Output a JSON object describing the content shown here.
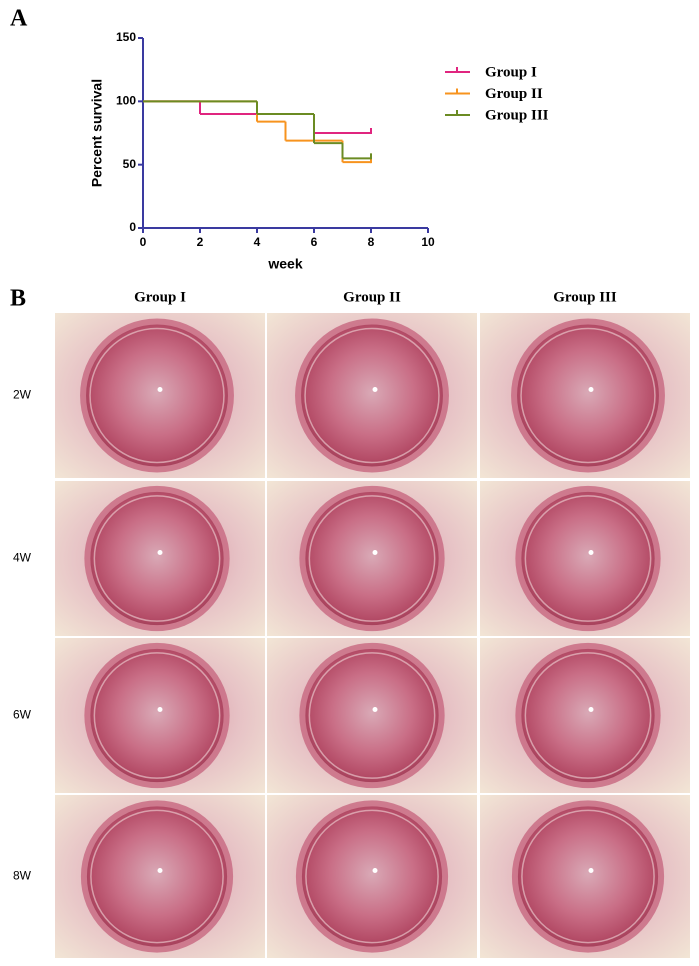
{
  "panel_labels": [
    "A",
    "B"
  ],
  "chart_data": {
    "type": "line",
    "step": "post",
    "xlabel": "week",
    "ylabel": "Percent survival",
    "x": [
      0,
      2,
      4,
      5,
      6,
      7,
      8
    ],
    "xlim": [
      0,
      10
    ],
    "xticks": [
      0,
      2,
      4,
      6,
      8,
      10
    ],
    "ylim": [
      0,
      150
    ],
    "yticks": [
      0,
      50,
      100,
      150
    ],
    "legend": "right",
    "series": [
      {
        "name": "Group I",
        "color": "#e0257f",
        "values": [
          100,
          90,
          90,
          90,
          75,
          75,
          75
        ]
      },
      {
        "name": "Group II",
        "color": "#f7931e",
        "values": [
          100,
          100,
          84,
          69,
          69,
          52,
          52
        ]
      },
      {
        "name": "Group III",
        "color": "#6b8b23",
        "values": [
          100,
          100,
          90,
          90,
          67,
          55,
          55
        ]
      }
    ]
  },
  "photo_grid": {
    "columns": [
      "Group I",
      "Group II",
      "Group III"
    ],
    "rows": [
      "2W",
      "4W",
      "6W",
      "8W"
    ]
  }
}
